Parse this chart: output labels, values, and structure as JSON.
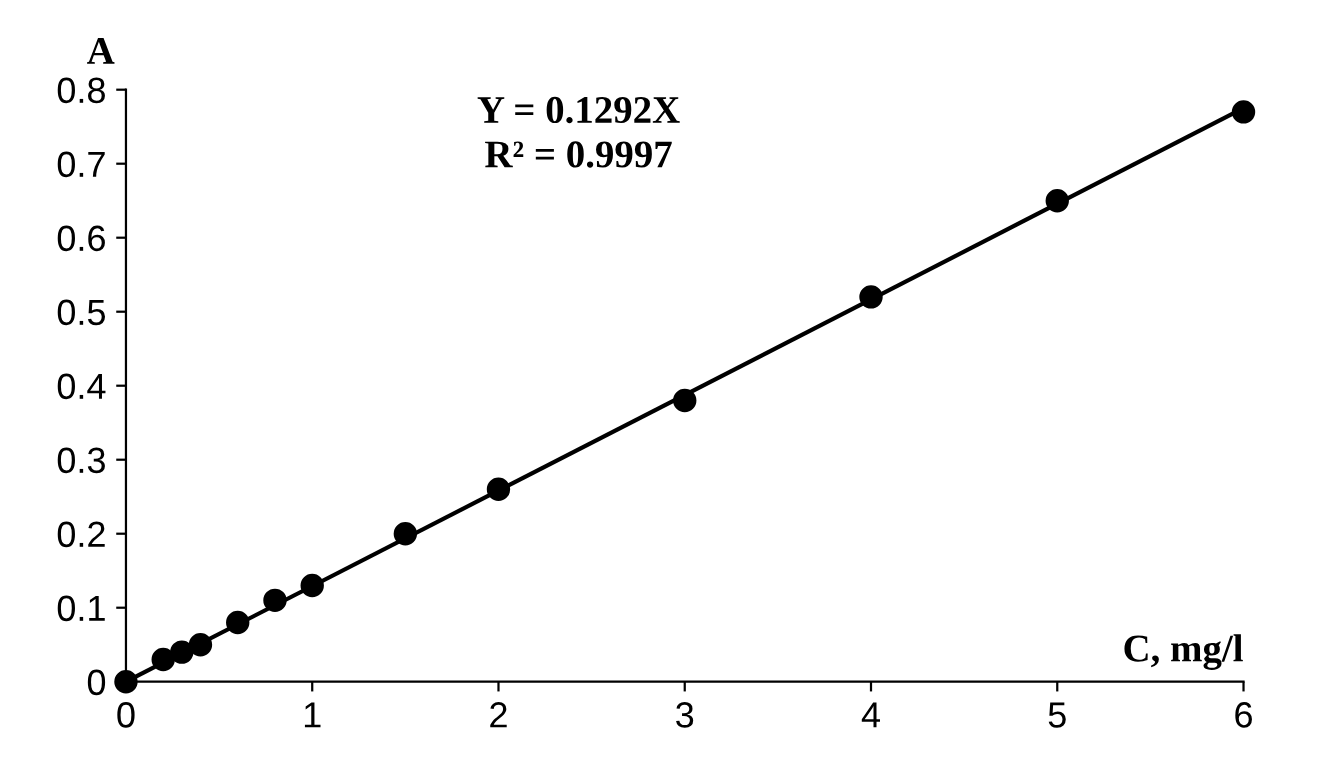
{
  "chart_data": {
    "type": "scatter",
    "ylabel": "A",
    "xlabel": "C, mg/l",
    "annotations": [
      "Y = 0.1292X",
      "R² = 0.9997"
    ],
    "series": [
      {
        "color": "#000000",
        "marker": "circle",
        "x": [
          0,
          0.2,
          0.3,
          0.4,
          0.6,
          0.8,
          1,
          1.5,
          2,
          3,
          4,
          5,
          6
        ],
        "values": [
          0,
          0.03,
          0.04,
          0.05,
          0.08,
          0.11,
          0.13,
          0.2,
          0.26,
          0.38,
          0.52,
          0.65,
          0.77
        ]
      },
      {
        "type": "line",
        "color": "#000000",
        "marker": "none",
        "line_style": "solid",
        "x": [
          0,
          6
        ],
        "values": [
          0,
          0.775
        ]
      }
    ],
    "xlim": [
      0,
      6
    ],
    "ylim": [
      0,
      0.8
    ],
    "xticks": [
      0,
      1,
      2,
      3,
      4,
      5,
      6
    ],
    "yticks": [
      0,
      0.1,
      0.2,
      0.3,
      0.4,
      0.5,
      0.6,
      0.7,
      0.8
    ],
    "grid": false,
    "legend": false
  }
}
